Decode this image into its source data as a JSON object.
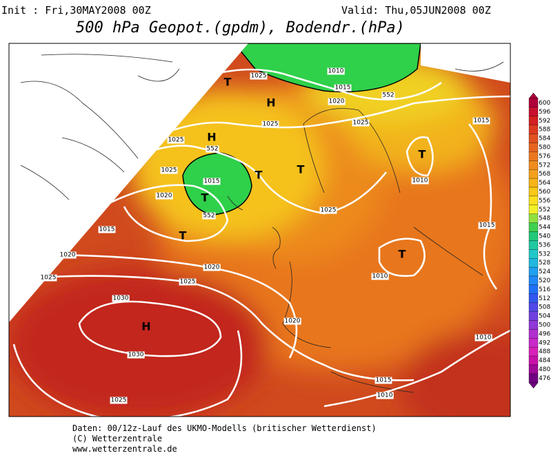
{
  "header": {
    "init": "Init : Fri,30MAY2008 00Z",
    "valid": "Valid: Thu,05JUN2008 00Z",
    "title": "500 hPa Geopot.(gpdm), Bodendr.(hPa)"
  },
  "map": {
    "isobar_labels": [
      "1025",
      "1010",
      "1015",
      "1020",
      "552",
      "1025",
      "1025",
      "1015",
      "1025",
      "1025",
      "1015",
      "1010",
      "1020",
      "1025",
      "1015",
      "1015",
      "1020",
      "1020",
      "1010",
      "1025",
      "1025",
      "1030",
      "1020",
      "1010",
      "1030",
      "1015",
      "1010",
      "1025",
      "552",
      "552"
    ],
    "systems": [
      "T",
      "H",
      "H",
      "T",
      "T",
      "T",
      "T",
      "T",
      "T",
      "H"
    ]
  },
  "colorbar": {
    "labels": [
      600,
      596,
      592,
      588,
      584,
      580,
      576,
      572,
      568,
      564,
      560,
      556,
      552,
      548,
      544,
      540,
      536,
      532,
      528,
      524,
      520,
      516,
      512,
      508,
      504,
      500,
      496,
      492,
      488,
      484,
      480,
      476
    ]
  },
  "footer": {
    "lines": [
      "Daten: 00/12z-Lauf des UKMO-Modells (britischer Wetterdienst)",
      "(C) Wetterzentrale",
      "www.wetterzentrale.de"
    ]
  }
}
